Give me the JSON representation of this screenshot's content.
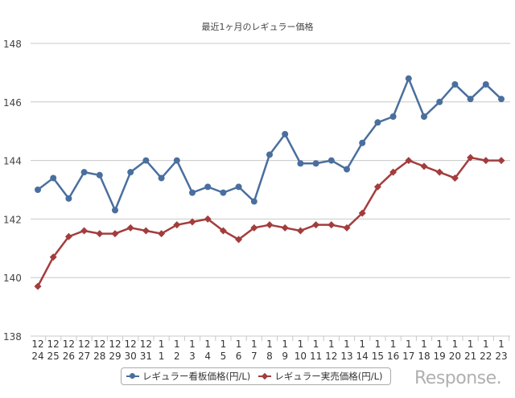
{
  "logo_text": "Response.",
  "chart_data": {
    "type": "line",
    "title": "最近1ヶ月のレギュラー価格",
    "xlabel": "",
    "ylabel": "",
    "ylim": [
      138,
      148
    ],
    "yticks": [
      138,
      140,
      142,
      144,
      146,
      148
    ],
    "grid": true,
    "legend_position": "bottom",
    "categories": [
      [
        "12",
        "24"
      ],
      [
        "12",
        "25"
      ],
      [
        "12",
        "26"
      ],
      [
        "12",
        "27"
      ],
      [
        "12",
        "28"
      ],
      [
        "12",
        "29"
      ],
      [
        "12",
        "30"
      ],
      [
        "12",
        "31"
      ],
      [
        "1",
        "1"
      ],
      [
        "1",
        "2"
      ],
      [
        "1",
        "3"
      ],
      [
        "1",
        "4"
      ],
      [
        "1",
        "5"
      ],
      [
        "1",
        "6"
      ],
      [
        "1",
        "7"
      ],
      [
        "1",
        "8"
      ],
      [
        "1",
        "9"
      ],
      [
        "1",
        "10"
      ],
      [
        "1",
        "11"
      ],
      [
        "1",
        "12"
      ],
      [
        "1",
        "13"
      ],
      [
        "1",
        "14"
      ],
      [
        "1",
        "15"
      ],
      [
        "1",
        "16"
      ],
      [
        "1",
        "17"
      ],
      [
        "1",
        "18"
      ],
      [
        "1",
        "19"
      ],
      [
        "1",
        "20"
      ],
      [
        "1",
        "21"
      ],
      [
        "1",
        "22"
      ],
      [
        "1",
        "23"
      ]
    ],
    "series": [
      {
        "name": "レギュラー看板価格(円/L)",
        "color": "#4a6f9e",
        "marker": "circle",
        "values": [
          143.0,
          143.4,
          142.7,
          143.6,
          143.5,
          142.3,
          143.6,
          144.0,
          143.4,
          144.0,
          142.9,
          143.1,
          142.9,
          143.1,
          142.6,
          144.2,
          144.9,
          143.9,
          143.9,
          144.0,
          143.7,
          144.6,
          145.3,
          145.5,
          146.8,
          145.5,
          146.0,
          146.6,
          146.1,
          146.6,
          146.1
        ]
      },
      {
        "name": "レギュラー実売価格(円/L)",
        "color": "#a33d3d",
        "marker": "diamond",
        "values": [
          139.7,
          140.7,
          141.4,
          141.6,
          141.5,
          141.5,
          141.7,
          141.6,
          141.5,
          141.8,
          141.9,
          142.0,
          141.6,
          141.3,
          141.7,
          141.8,
          141.7,
          141.6,
          141.8,
          141.8,
          141.7,
          142.2,
          143.1,
          143.6,
          144.0,
          143.8,
          143.6,
          143.4,
          144.1,
          144.0,
          144.0
        ]
      }
    ]
  }
}
